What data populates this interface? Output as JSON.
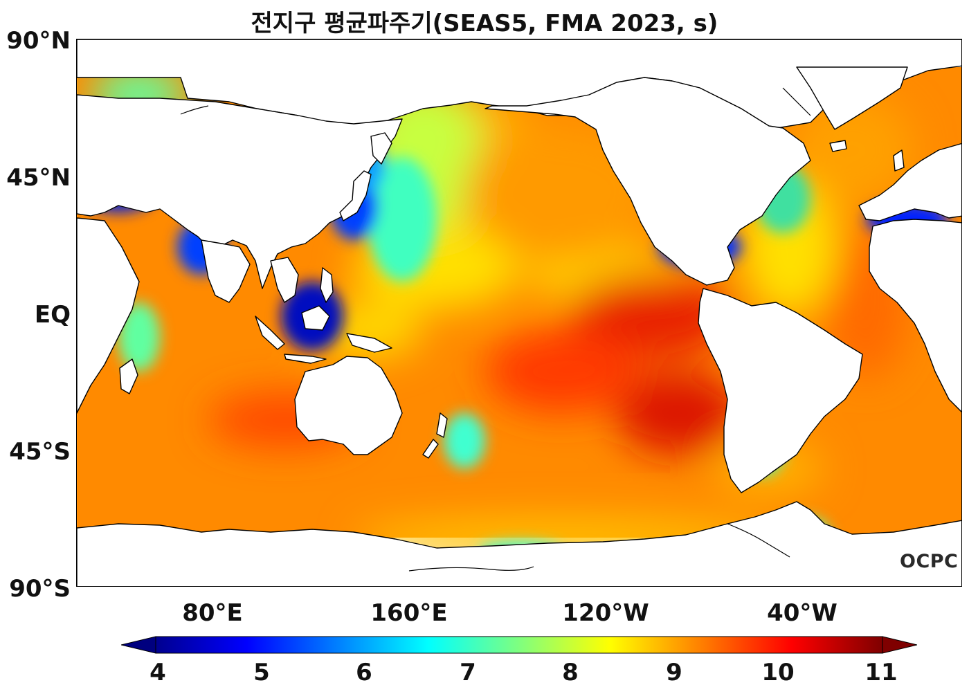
{
  "title": "전지구 평균파주기(SEAS5, FMA 2023, s)",
  "logo": "OCPC",
  "y_ticks": [
    "90°N",
    "45°N",
    "EQ",
    "45°S",
    "90°S"
  ],
  "x_ticks": [
    "80°E",
    "160°E",
    "120°W",
    "40°W"
  ],
  "colorbar": {
    "ticks": [
      "4",
      "5",
      "6",
      "7",
      "8",
      "9",
      "10",
      "11"
    ],
    "min": 4,
    "max": 11,
    "extend": "both",
    "colormap": "jet",
    "colors": [
      "#00007f",
      "#0000ff",
      "#007fff",
      "#00ffff",
      "#7fff7f",
      "#ffff00",
      "#ff7f00",
      "#ff0000",
      "#7f0000"
    ]
  },
  "colors": {
    "land": "#ffffff",
    "coastline": "#000000",
    "ocean_typical": "#ff8c00"
  }
}
